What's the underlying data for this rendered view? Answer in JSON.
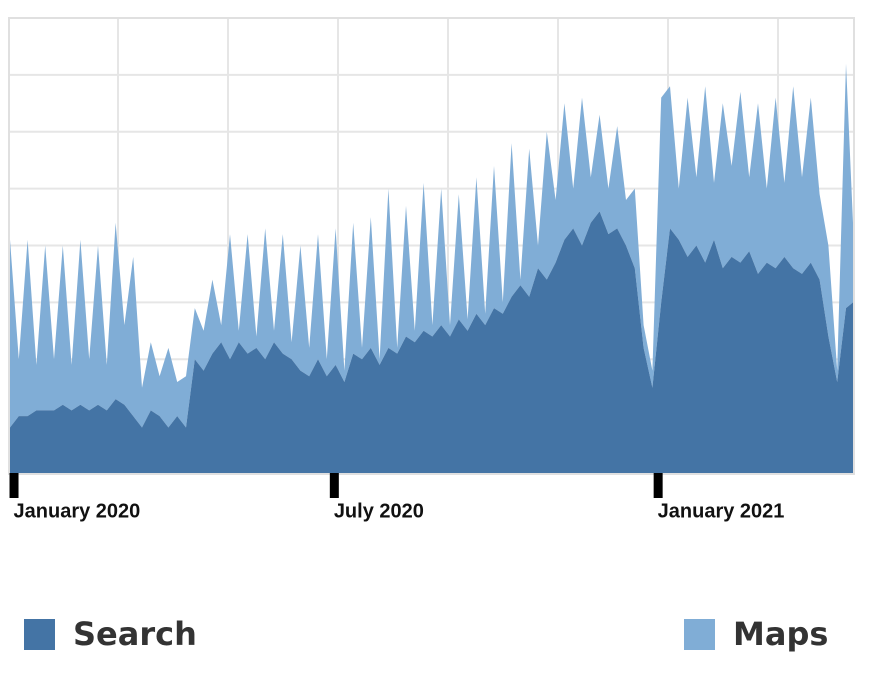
{
  "chart_data": {
    "type": "area",
    "stacked": true,
    "x": [
      -2,
      3,
      8,
      13,
      18,
      23,
      28,
      33,
      38,
      43,
      48,
      53,
      58,
      63,
      68,
      73,
      78,
      83,
      88,
      93,
      98,
      103,
      108,
      113,
      118,
      123,
      128,
      133,
      138,
      143,
      148,
      153,
      158,
      163,
      168,
      173,
      178,
      183,
      188,
      193,
      198,
      203,
      208,
      213,
      218,
      223,
      228,
      233,
      238,
      243,
      248,
      253,
      258,
      263,
      268,
      273,
      278,
      283,
      288,
      293,
      298,
      303,
      308,
      313,
      318,
      323,
      328,
      333,
      338,
      343,
      348,
      353,
      358,
      363,
      368,
      373,
      378,
      383,
      388,
      393,
      398,
      403,
      408,
      413,
      418,
      423,
      428,
      433,
      438,
      443,
      448,
      453,
      458,
      463,
      468,
      473,
      477
    ],
    "series": [
      {
        "name": "Search",
        "color": "#4474a5",
        "values": [
          0.8,
          1.0,
          1.0,
          1.1,
          1.1,
          1.1,
          1.2,
          1.1,
          1.2,
          1.1,
          1.2,
          1.1,
          1.3,
          1.2,
          1.0,
          0.8,
          1.1,
          1.0,
          0.8,
          1.0,
          0.8,
          2.0,
          1.8,
          2.1,
          2.3,
          2.0,
          2.3,
          2.1,
          2.2,
          2.0,
          2.3,
          2.1,
          2.0,
          1.8,
          1.7,
          2.0,
          1.7,
          1.9,
          1.6,
          2.1,
          2.0,
          2.2,
          1.9,
          2.2,
          2.1,
          2.4,
          2.3,
          2.5,
          2.4,
          2.6,
          2.4,
          2.7,
          2.5,
          2.8,
          2.6,
          2.9,
          2.8,
          3.1,
          3.3,
          3.1,
          3.6,
          3.4,
          3.7,
          4.1,
          4.3,
          4.0,
          4.4,
          4.6,
          4.2,
          4.3,
          4.0,
          3.6,
          2.2,
          1.5,
          3.0,
          4.3,
          4.1,
          3.8,
          4.0,
          3.7,
          4.1,
          3.6,
          3.8,
          3.7,
          3.9,
          3.5,
          3.7,
          3.6,
          3.8,
          3.6,
          3.5,
          3.7,
          3.4,
          2.4,
          1.6,
          2.9,
          3.0
        ]
      },
      {
        "name": "Maps",
        "color": "#80add6",
        "values": [
          3.3,
          1.0,
          3.1,
          0.8,
          2.9,
          0.9,
          2.8,
          0.8,
          2.9,
          0.9,
          2.8,
          0.8,
          3.1,
          1.4,
          2.8,
          0.7,
          1.2,
          0.7,
          1.4,
          0.6,
          0.9,
          0.9,
          0.7,
          1.3,
          0.3,
          2.2,
          0.2,
          2.1,
          0.2,
          2.3,
          0.2,
          2.1,
          0.3,
          2.2,
          0.5,
          2.2,
          0.3,
          2.4,
          0.2,
          2.3,
          0.2,
          2.3,
          0.1,
          2.8,
          0.1,
          2.3,
          0.2,
          2.6,
          0.2,
          2.4,
          0.2,
          2.2,
          0.2,
          2.4,
          0.2,
          2.5,
          0.2,
          2.7,
          0.1,
          2.6,
          0.4,
          2.6,
          1.1,
          2.4,
          0.7,
          2.6,
          0.8,
          1.7,
          0.8,
          1.8,
          0.8,
          1.4,
          0.4,
          0.3,
          3.6,
          2.5,
          0.9,
          2.8,
          1.2,
          3.1,
          1.0,
          2.9,
          1.6,
          3.0,
          1.3,
          3.0,
          1.3,
          3.0,
          1.3,
          3.2,
          1.7,
          2.9,
          1.5,
          1.6,
          0.2,
          4.3,
          1.4
        ]
      }
    ],
    "xlim": [
      -2,
      477
    ],
    "xticks": [
      {
        "value": 0,
        "label": "January 2020"
      },
      {
        "value": 182,
        "label": "July 2020"
      },
      {
        "value": 366,
        "label": "January 2021"
      }
    ],
    "ylim": [
      0,
      8
    ],
    "yticks": [
      0,
      1,
      2,
      3,
      4,
      5,
      6,
      7,
      8
    ],
    "grid": true,
    "legend": "bottom"
  }
}
